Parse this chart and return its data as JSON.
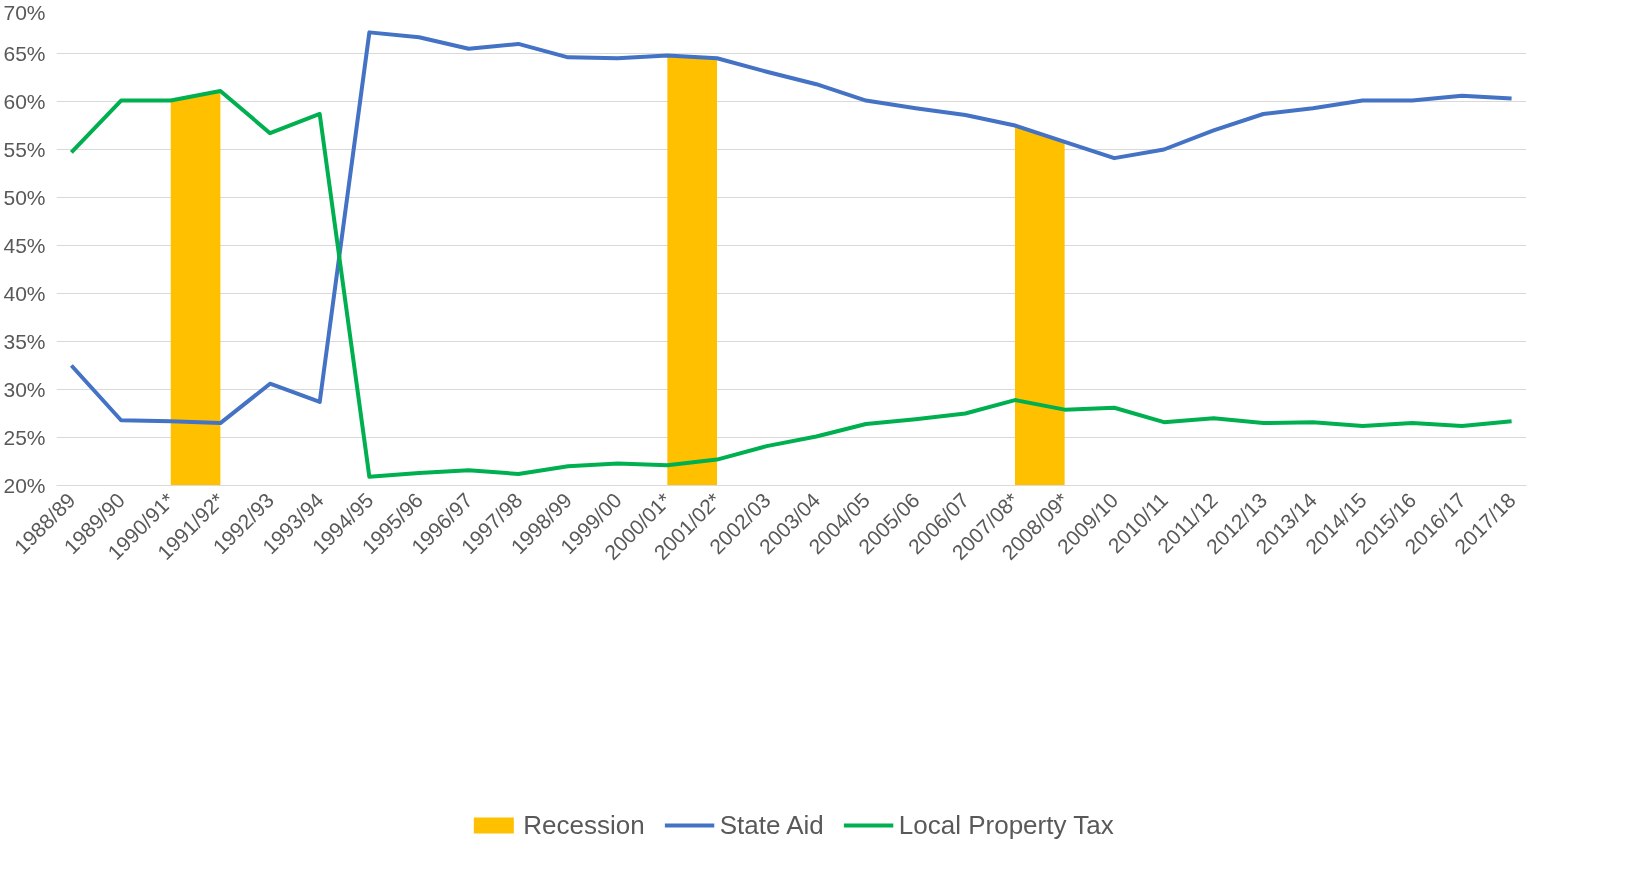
{
  "chart_data": {
    "type": "line",
    "categories": [
      "1988/89",
      "1989/90",
      "1990/91*",
      "1991/92*",
      "1992/93",
      "1993/94",
      "1994/95",
      "1995/96",
      "1996/97",
      "1997/98",
      "1998/99",
      "1999/00",
      "2000/01*",
      "2001/02*",
      "2002/03",
      "2003/04",
      "2004/05",
      "2005/06",
      "2006/07",
      "2007/08*",
      "2008/09*",
      "2009/10",
      "2010/11",
      "2011/12",
      "2012/13",
      "2013/14",
      "2014/15",
      "2015/16",
      "2016/17",
      "2017/18"
    ],
    "series": [
      {
        "name": "Recession",
        "type": "area",
        "color": "#ffc000",
        "values": [
          null,
          null,
          60.1,
          61.1,
          null,
          null,
          null,
          null,
          null,
          null,
          null,
          null,
          64.8,
          64.5,
          null,
          null,
          null,
          null,
          null,
          57.5,
          55.8,
          null,
          null,
          null,
          null,
          null,
          null,
          null,
          null,
          null
        ]
      },
      {
        "name": "State Aid",
        "color": "#4472c4",
        "values": [
          32.5,
          26.8,
          26.7,
          26.5,
          30.6,
          28.7,
          67.2,
          66.7,
          65.5,
          66.0,
          64.6,
          64.5,
          64.8,
          64.5,
          63.1,
          61.8,
          60.1,
          59.3,
          58.6,
          57.5,
          55.8,
          54.1,
          55.0,
          57.0,
          58.7,
          59.3,
          60.1,
          60.1,
          60.6,
          60.3
        ]
      },
      {
        "name": "Local Property Tax",
        "color": "#00b050",
        "values": [
          54.7,
          60.1,
          60.1,
          61.1,
          56.7,
          58.7,
          20.9,
          21.3,
          21.6,
          21.2,
          22.0,
          22.3,
          22.1,
          22.7,
          24.1,
          25.1,
          26.4,
          26.9,
          27.5,
          28.9,
          27.9,
          28.1,
          26.6,
          27.0,
          26.5,
          26.6,
          26.2,
          26.5,
          26.2,
          26.7
        ]
      }
    ],
    "ylim": [
      20,
      70
    ],
    "yticks": [
      {
        "value": 20,
        "label": "20%"
      },
      {
        "value": 25,
        "label": "25%"
      },
      {
        "value": 30,
        "label": "30%"
      },
      {
        "value": 35,
        "label": "35%"
      },
      {
        "value": 40,
        "label": "40%"
      },
      {
        "value": 45,
        "label": "45%"
      },
      {
        "value": 50,
        "label": "50%"
      },
      {
        "value": 55,
        "label": "55%"
      },
      {
        "value": 60,
        "label": "60%"
      },
      {
        "value": 65,
        "label": "65%"
      },
      {
        "value": 70,
        "label": "70%"
      }
    ],
    "grid": "y",
    "legend": "bottom",
    "line_style": "solid",
    "marker": "none"
  }
}
